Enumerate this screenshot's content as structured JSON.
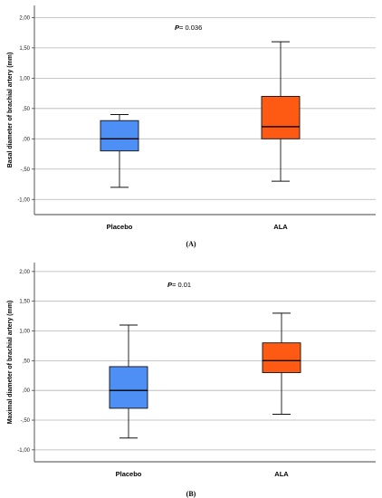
{
  "chart_data": [
    {
      "type": "box",
      "caption": "(A)",
      "ylabel": "Basal diameter of brachial artery (mm)",
      "annotation": {
        "p_symbol": "P",
        "p_text": "= 0.036"
      },
      "ylim": [
        -1.25,
        2.2
      ],
      "yticks": [
        "-1,00",
        "-,50",
        ",00",
        ",50",
        "1,00",
        "1,50",
        "2,00"
      ],
      "ytick_values": [
        -1.0,
        -0.5,
        0.0,
        0.5,
        1.0,
        1.5,
        2.0
      ],
      "grid": true,
      "categories": [
        "Placebo",
        "ALA"
      ],
      "boxes": [
        {
          "name": "Placebo",
          "color": "#4D8FF5",
          "min": -0.8,
          "q1": -0.2,
          "median": 0.0,
          "q3": 0.3,
          "max": 0.4
        },
        {
          "name": "ALA",
          "color": "#FF5A14",
          "min": -0.7,
          "q1": 0.0,
          "median": 0.2,
          "q3": 0.7,
          "max": 1.6
        }
      ]
    },
    {
      "type": "box",
      "caption": "(B)",
      "ylabel": "Maximal diameter of brachial artery (mm)",
      "annotation": {
        "p_symbol": "P",
        "p_text": "= 0.01"
      },
      "ylim": [
        -1.2,
        2.15
      ],
      "yticks": [
        "-1,00",
        "-,50",
        ",00",
        ",50",
        "1,00",
        "1,50",
        "2,00"
      ],
      "ytick_values": [
        -1.0,
        -0.5,
        0.0,
        0.5,
        1.0,
        1.5,
        2.0
      ],
      "grid": true,
      "categories": [
        "Placebo",
        "ALA"
      ],
      "boxes": [
        {
          "name": "Placebo",
          "color": "#4D8FF5",
          "min": -0.8,
          "q1": -0.3,
          "median": 0.0,
          "q3": 0.4,
          "max": 1.1
        },
        {
          "name": "ALA",
          "color": "#FF5A14",
          "min": -0.4,
          "q1": 0.3,
          "median": 0.5,
          "q3": 0.8,
          "max": 1.3
        }
      ]
    }
  ]
}
